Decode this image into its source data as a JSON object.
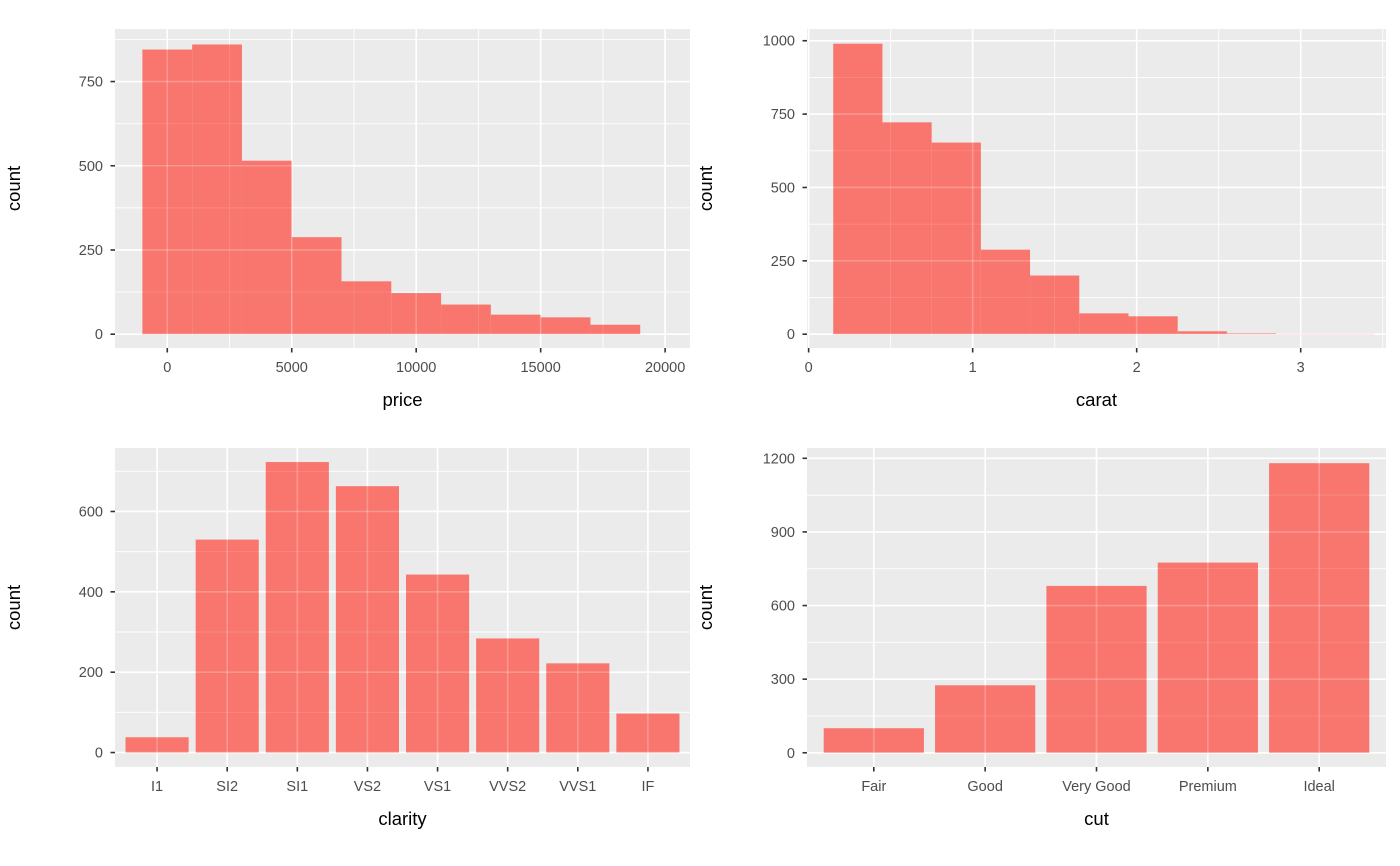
{
  "style": {
    "background": "#FFFFFF",
    "panel_bg": "#EBEBEB",
    "grid_color": "#FFFFFF",
    "bar_fill": "#F8766D",
    "tick_label_color": "#4D4D4D",
    "axis_title_color": "#000000",
    "tick_mark_color": "#333333"
  },
  "chart_data": [
    {
      "name": "price-histogram",
      "type": "bar",
      "subtype": "histogram",
      "title": "",
      "xlabel": "price",
      "ylabel": "count",
      "bin_start": -1000,
      "bin_width": 2000,
      "values": [
        845,
        860,
        515,
        288,
        157,
        122,
        88,
        58,
        50,
        28
      ],
      "x_domain": [
        -2100,
        21000
      ],
      "y_domain": [
        -41,
        906
      ],
      "x_ticks": [
        0,
        5000,
        10000,
        15000,
        20000
      ],
      "x_tick_labels": [
        "0",
        "5000",
        "10000",
        "15000",
        "20000"
      ],
      "x_minor": [
        2500,
        7500,
        12500,
        17500
      ],
      "y_ticks": [
        0,
        250,
        500,
        750
      ],
      "y_tick_labels": [
        "0",
        "250",
        "500",
        "750"
      ],
      "y_minor": [
        125,
        375,
        625,
        875
      ],
      "grid": true,
      "legend": "none"
    },
    {
      "name": "carat-histogram",
      "type": "bar",
      "subtype": "histogram",
      "title": "",
      "xlabel": "carat",
      "ylabel": "count",
      "bin_start": 0.15,
      "bin_width": 0.3,
      "values": [
        990,
        722,
        653,
        288,
        200,
        71,
        61,
        10,
        3,
        1,
        1
      ],
      "x_domain": [
        -0.01,
        3.52
      ],
      "y_domain": [
        -47,
        1040
      ],
      "x_ticks": [
        0,
        1,
        2,
        3
      ],
      "x_tick_labels": [
        "0",
        "1",
        "2",
        "3"
      ],
      "x_minor": [
        0.5,
        1.5,
        2.5,
        3.5
      ],
      "y_ticks": [
        0,
        250,
        500,
        750,
        1000
      ],
      "y_tick_labels": [
        "0",
        "250",
        "500",
        "750",
        "1000"
      ],
      "y_minor": [
        125,
        375,
        625,
        875
      ],
      "grid": true,
      "legend": "none"
    },
    {
      "name": "clarity-bar-chart",
      "type": "bar",
      "subtype": "categorical",
      "title": "",
      "xlabel": "clarity",
      "ylabel": "count",
      "categories": [
        "I1",
        "SI2",
        "SI1",
        "VS2",
        "VS1",
        "VVS2",
        "VVS1",
        "IF"
      ],
      "values": [
        38,
        530,
        723,
        663,
        443,
        284,
        222,
        97
      ],
      "y_domain": [
        -36,
        758
      ],
      "y_ticks": [
        0,
        200,
        400,
        600
      ],
      "y_tick_labels": [
        "0",
        "200",
        "400",
        "600"
      ],
      "y_minor": [
        100,
        300,
        500,
        700
      ],
      "grid": true,
      "legend": "none"
    },
    {
      "name": "cut-bar-chart",
      "type": "bar",
      "subtype": "categorical",
      "title": "",
      "xlabel": "cut",
      "ylabel": "count",
      "categories": [
        "Fair",
        "Good",
        "Very Good",
        "Premium",
        "Ideal"
      ],
      "values": [
        100,
        275,
        680,
        775,
        1180
      ],
      "y_domain": [
        -58,
        1242
      ],
      "y_ticks": [
        0,
        300,
        600,
        900,
        1200
      ],
      "y_tick_labels": [
        "0",
        "300",
        "600",
        "900",
        "1200"
      ],
      "y_minor": [
        150,
        450,
        750,
        1050
      ],
      "grid": true,
      "legend": "none"
    }
  ]
}
